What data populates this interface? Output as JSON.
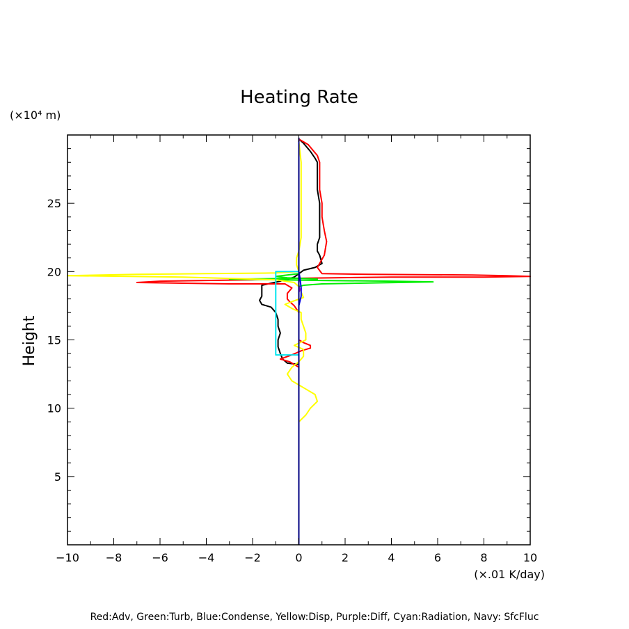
{
  "chart_data": {
    "type": "line",
    "title": "Heating Rate",
    "ylabel": "Height",
    "y_unit": "(×10⁴ m)",
    "x_unit": "(×.01 K/day)",
    "xlim": [
      -10,
      10
    ],
    "ylim": [
      0,
      30
    ],
    "xticks": [
      "−10",
      "−8",
      "−6",
      "−4",
      "−2",
      "0",
      "2",
      "4",
      "6",
      "8",
      "10"
    ],
    "xtick_values": [
      -10,
      -8,
      -6,
      -4,
      -2,
      0,
      2,
      4,
      6,
      8,
      10
    ],
    "yticks": [
      "5",
      "10",
      "15",
      "20",
      "25"
    ],
    "ytick_values": [
      5,
      10,
      15,
      20,
      25
    ],
    "grid": false,
    "legend_text": "Red:Adv, Green:Turb, Blue:Condense, Yellow:Disp, Purple:Diff, Cyan:Radiation, Navy: SfcFluc",
    "series": [
      {
        "color": "#000000",
        "points": [
          [
            0,
            8
          ],
          [
            0,
            12
          ],
          [
            0,
            13.2
          ],
          [
            -0.5,
            13.3
          ],
          [
            -0.7,
            13.6
          ],
          [
            -0.8,
            14
          ],
          [
            -0.9,
            14.5
          ],
          [
            -0.9,
            15
          ],
          [
            -0.8,
            15.5
          ],
          [
            -0.9,
            16
          ],
          [
            -0.9,
            16.5
          ],
          [
            -1.0,
            17
          ],
          [
            -1.2,
            17.4
          ],
          [
            -1.6,
            17.6
          ],
          [
            -1.7,
            17.9
          ],
          [
            -1.6,
            18.2
          ],
          [
            -1.6,
            18.5
          ],
          [
            -1.6,
            19
          ],
          [
            -0.8,
            19.3
          ],
          [
            -0.2,
            19.6
          ],
          [
            0.2,
            20.1
          ],
          [
            0.7,
            20.3
          ],
          [
            1.0,
            20.6
          ],
          [
            0.9,
            21.2
          ],
          [
            0.8,
            21.5
          ],
          [
            0.8,
            22
          ],
          [
            0.9,
            22.5
          ],
          [
            0.9,
            23
          ],
          [
            0.9,
            24
          ],
          [
            0.9,
            25
          ],
          [
            0.8,
            26
          ],
          [
            0.8,
            27
          ],
          [
            0.8,
            28
          ],
          [
            0.7,
            28.3
          ],
          [
            0.5,
            28.8
          ],
          [
            0.2,
            29.4
          ],
          [
            0,
            29.7
          ]
        ]
      },
      {
        "color": "#ff0000",
        "points": [
          [
            0,
            13
          ],
          [
            -0.4,
            13.4
          ],
          [
            -0.8,
            13.6
          ],
          [
            -0.3,
            13.9
          ],
          [
            0.1,
            14.2
          ],
          [
            0.5,
            14.4
          ],
          [
            0.5,
            14.6
          ],
          [
            0.2,
            14.8
          ],
          [
            0,
            15
          ],
          [
            0,
            16.5
          ],
          [
            0,
            17
          ],
          [
            -0.2,
            17.5
          ],
          [
            -0.4,
            17.8
          ],
          [
            -0.5,
            18
          ],
          [
            -0.5,
            18.4
          ],
          [
            -0.3,
            18.8
          ],
          [
            -0.6,
            19.1
          ],
          [
            -3,
            19.1
          ],
          [
            -7,
            19.2
          ],
          [
            -6,
            19.3
          ],
          [
            -2,
            19.4
          ],
          [
            -0.5,
            19.5
          ],
          [
            4,
            19.6
          ],
          [
            8,
            19.6
          ],
          [
            10,
            19.65
          ],
          [
            9,
            19.7
          ],
          [
            7.5,
            19.75
          ],
          [
            3,
            19.8
          ],
          [
            1,
            19.85
          ],
          [
            0.8,
            20.3
          ],
          [
            1.1,
            21.2
          ],
          [
            1.2,
            22.2
          ],
          [
            1.1,
            23
          ],
          [
            1.0,
            24
          ],
          [
            1.0,
            25
          ],
          [
            0.9,
            26
          ],
          [
            0.9,
            27
          ],
          [
            0.9,
            28
          ],
          [
            0.8,
            28.5
          ],
          [
            0.4,
            29.3
          ],
          [
            0.1,
            29.6
          ],
          [
            0,
            29.7
          ]
        ]
      },
      {
        "color": "#00ee00",
        "points": [
          [
            0,
            18.9
          ],
          [
            0.2,
            19
          ],
          [
            1,
            19.1
          ],
          [
            5.8,
            19.25
          ],
          [
            4,
            19.3
          ],
          [
            1,
            19.35
          ],
          [
            -1,
            19.4
          ],
          [
            -3,
            19.45
          ],
          [
            0,
            19.5
          ],
          [
            0.8,
            19.45
          ],
          [
            -0.5,
            19.55
          ],
          [
            -1,
            19.65
          ],
          [
            -0.5,
            19.75
          ],
          [
            0,
            19.85
          ],
          [
            0,
            20
          ]
        ]
      },
      {
        "color": "#ffff00",
        "points": [
          [
            0,
            9
          ],
          [
            0.3,
            9.5
          ],
          [
            0.5,
            10
          ],
          [
            0.8,
            10.5
          ],
          [
            0.7,
            11
          ],
          [
            0.2,
            11.5
          ],
          [
            -0.3,
            12
          ],
          [
            -0.5,
            12.5
          ],
          [
            -0.3,
            13
          ],
          [
            0,
            13.4
          ],
          [
            0.2,
            13.8
          ],
          [
            0.2,
            14.3
          ],
          [
            -0.2,
            14.6
          ],
          [
            0.3,
            15
          ],
          [
            0.3,
            15.5
          ],
          [
            0.2,
            16
          ],
          [
            0.1,
            16.5
          ],
          [
            0.1,
            17
          ],
          [
            -0.3,
            17.3
          ],
          [
            -0.6,
            17.6
          ],
          [
            -0.3,
            17.8
          ],
          [
            0.2,
            18.1
          ],
          [
            0.1,
            18.5
          ],
          [
            0,
            18.9
          ],
          [
            -0.2,
            19.2
          ],
          [
            -1,
            19.4
          ],
          [
            -5,
            19.6
          ],
          [
            -10,
            19.7
          ],
          [
            -7,
            19.8
          ],
          [
            -4,
            19.85
          ],
          [
            -1,
            19.9
          ],
          [
            0,
            20
          ],
          [
            -0.1,
            20.5
          ],
          [
            -0.1,
            21
          ],
          [
            0,
            21.5
          ],
          [
            0.1,
            22.5
          ],
          [
            0.1,
            25
          ],
          [
            0.1,
            28
          ],
          [
            0,
            29.5
          ]
        ]
      },
      {
        "color": "#00e5ee",
        "points": [
          [
            0,
            13.9
          ],
          [
            -1,
            13.9
          ],
          [
            -1,
            20
          ],
          [
            0,
            20
          ],
          [
            0,
            20.1
          ]
        ]
      },
      {
        "color": "#0000dd",
        "points": [
          [
            0,
            0
          ],
          [
            0,
            17.5
          ],
          [
            0.1,
            18.2
          ],
          [
            0.1,
            18.8
          ],
          [
            0.05,
            19.5
          ],
          [
            0,
            20
          ],
          [
            0,
            29.8
          ]
        ]
      },
      {
        "color": "#cc00cc",
        "points": [
          [
            0,
            18.5
          ],
          [
            0.05,
            18.7
          ],
          [
            0,
            18.9
          ]
        ]
      },
      {
        "color": "#000080",
        "points": [
          [
            0,
            0
          ],
          [
            0,
            29.8
          ]
        ]
      }
    ]
  }
}
